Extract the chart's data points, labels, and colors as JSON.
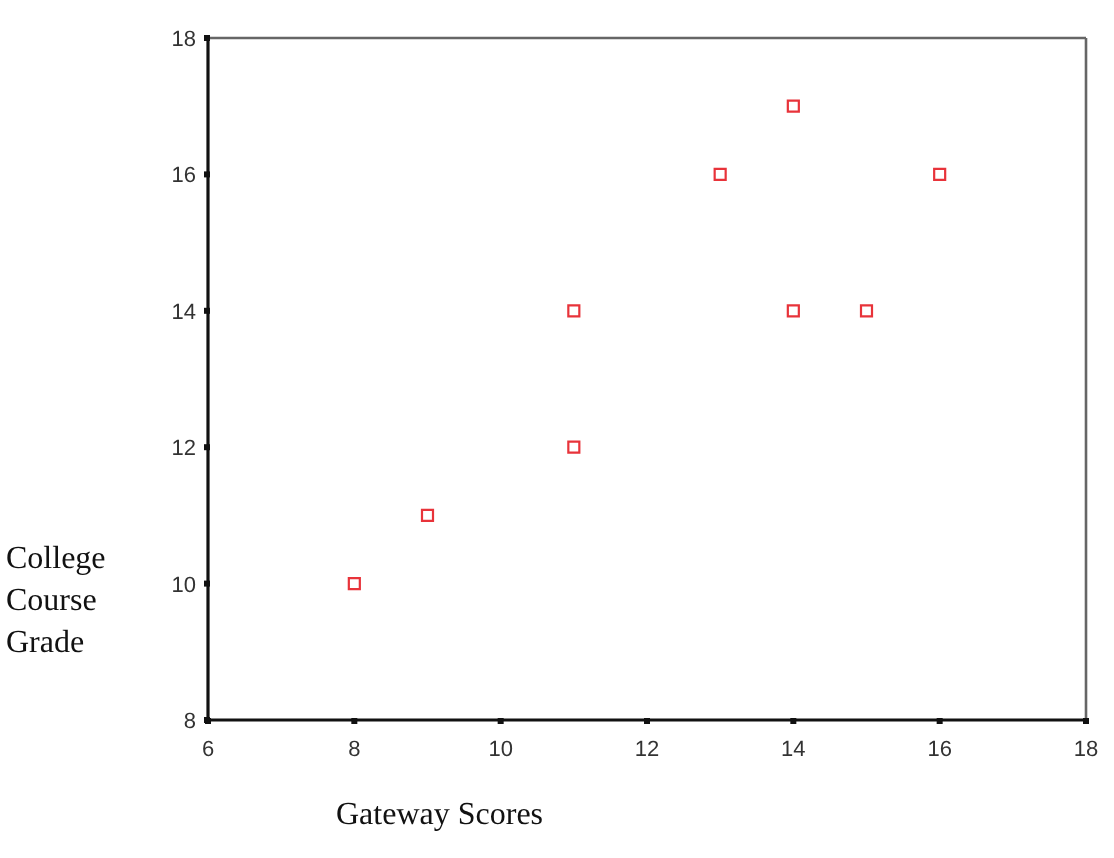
{
  "chart_data": {
    "type": "scatter",
    "xlabel": "Gateway Scores",
    "ylabel": "College Course Grade",
    "x": [
      8,
      9,
      11,
      11,
      13,
      14,
      14,
      15,
      16
    ],
    "series": [
      {
        "color": "#e8333a",
        "values": [
          10,
          11,
          12,
          14,
          16,
          17,
          14,
          14,
          16
        ]
      }
    ],
    "xlim": [
      6,
      18
    ],
    "ylim": [
      8,
      18
    ],
    "xticks": [
      6,
      8,
      10,
      12,
      14,
      16,
      18
    ],
    "yticks": [
      8,
      10,
      12,
      14,
      16,
      18
    ],
    "marker": "square"
  }
}
